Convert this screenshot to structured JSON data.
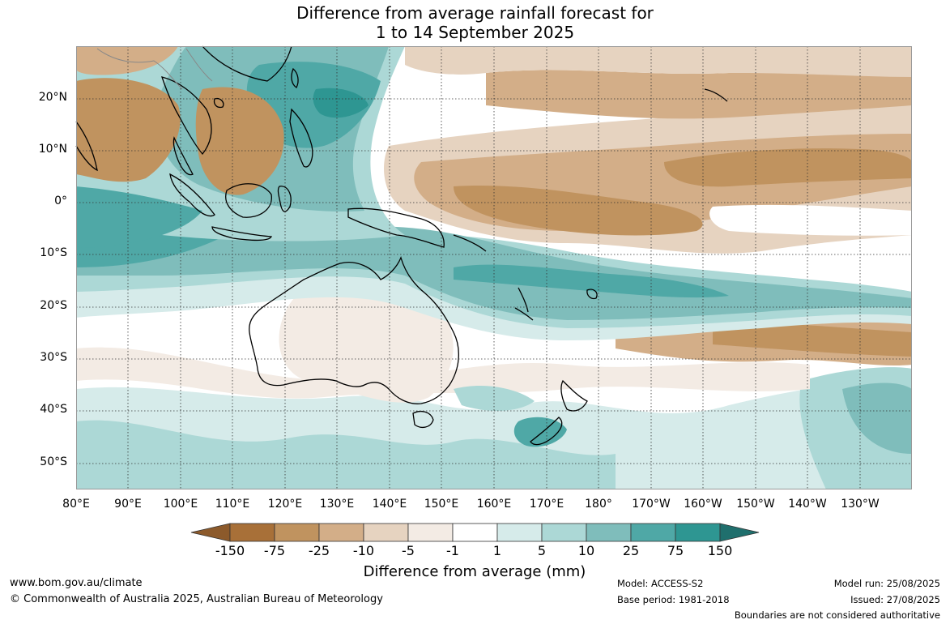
{
  "title": {
    "line1": "Difference from average rainfall forecast for",
    "line2": "1 to 14 September 2025"
  },
  "lat_labels": [
    "20°N",
    "10°N",
    "0°",
    "10°S",
    "20°S",
    "30°S",
    "40°S",
    "50°S"
  ],
  "lon_labels": [
    "80°E",
    "90°E",
    "100°E",
    "110°E",
    "120°E",
    "130°E",
    "140°E",
    "150°E",
    "160°E",
    "170°E",
    "180°",
    "170°W",
    "160°W",
    "150°W",
    "140°W",
    "130°W"
  ],
  "colorbar": {
    "title": "Difference from average (mm)",
    "ticks": [
      "-150",
      "-75",
      "-25",
      "-10",
      "-5",
      "-1",
      "1",
      "5",
      "10",
      "25",
      "75",
      "150"
    ],
    "colors": [
      "#8c5a2b",
      "#a87038",
      "#c0935f",
      "#d3ae88",
      "#e6d3c0",
      "#f3ebe4",
      "#ffffff",
      "#d6ebea",
      "#acd8d6",
      "#7fbdbb",
      "#4fa8a6",
      "#2e9692",
      "#1f6f6d"
    ]
  },
  "legend_colors": {
    "dry_strong": "#c0935f",
    "dry_mid": "#d3ae88",
    "dry_light": "#e6d3c0",
    "dry_faint": "#f3ebe4",
    "wet_faint": "#d6ebea",
    "wet_light": "#acd8d6",
    "wet_mid": "#7fbdbb",
    "wet_strong": "#4fa8a6",
    "wet_max": "#2e9692"
  },
  "footer": {
    "website": "www.bom.gov.au/climate",
    "copyright": "© Commonwealth of Australia 2025, Australian Bureau of Meteorology",
    "model": "Model: ACCESS-S2",
    "base_period": "Base period: 1981-2018",
    "model_run": "Model run: 25/08/2025",
    "issued": "Issued: 27/08/2025",
    "disclaimer": "Boundaries are not considered authoritative"
  }
}
